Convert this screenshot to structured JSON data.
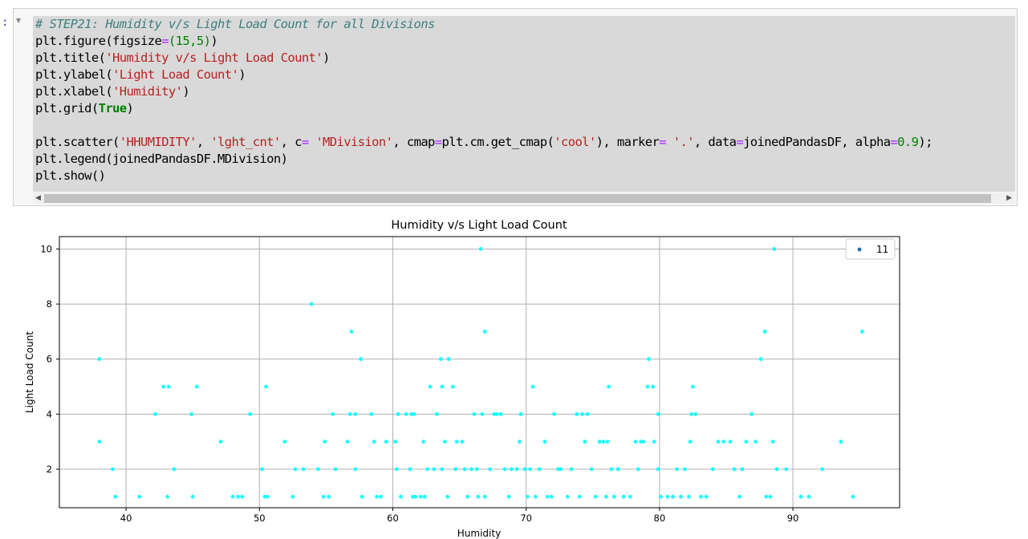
{
  "prompt": ":",
  "code": {
    "comment": "# STEP21: Humidity v/s Light Load Count for all Divisions",
    "line2_pre": "plt.figure(figsize",
    "line2_op": "=",
    "line2_num": "(15,5)",
    "line2_post": ")",
    "line3_pre": "plt.title(",
    "line3_str": "'Humidity v/s Light Load Count'",
    "line3_post": ")",
    "line4_pre": "plt.ylabel(",
    "line4_str": "'Light Load Count'",
    "line4_post": ")",
    "line5_pre": "plt.xlabel(",
    "line5_str": "'Humidity'",
    "line5_post": ")",
    "line6_pre": "plt.grid(",
    "line6_kw": "True",
    "line6_post": ")",
    "line8_a": "plt.scatter(",
    "line8_s1": "'HHUMIDITY'",
    "line8_b": ", ",
    "line8_s2": "'lght_cnt'",
    "line8_c": ", c",
    "line8_op1": "=",
    "line8_d": " ",
    "line8_s3": "'MDivision'",
    "line8_e": ", cmap",
    "line8_op2": "=",
    "line8_f": "plt.cm.get_cmap(",
    "line8_s4": "'cool'",
    "line8_g": "), marker",
    "line8_op3": "=",
    "line8_h": " ",
    "line8_s5": "'.'",
    "line8_i": ", data",
    "line8_op4": "=",
    "line8_j": "joinedPandasDF, alpha",
    "line8_op5": "=",
    "line8_num": "0.9",
    "line8_k": ");",
    "line9": "plt.legend(joinedPandasDF.MDivision)",
    "line10": "plt.show()"
  },
  "chart_data": {
    "type": "scatter",
    "title": "Humidity v/s Light Load Count",
    "xlabel": "Humidity",
    "ylabel": "Light Load Count",
    "xlim": [
      35,
      98
    ],
    "ylim": [
      0.6,
      10.45
    ],
    "xticks": [
      40,
      50,
      60,
      70,
      80,
      90
    ],
    "yticks": [
      2,
      4,
      6,
      8,
      10
    ],
    "grid": true,
    "legend": {
      "position": "top-right",
      "entries": [
        "11"
      ],
      "marker_color": "#1f77b4"
    },
    "point_color": "#00ffff",
    "points": [
      [
        38,
        6
      ],
      [
        38,
        3
      ],
      [
        39,
        2
      ],
      [
        39.2,
        1
      ],
      [
        41,
        1
      ],
      [
        42.2,
        4
      ],
      [
        42.8,
        5
      ],
      [
        43.2,
        5
      ],
      [
        43.1,
        1
      ],
      [
        43.6,
        2
      ],
      [
        44.9,
        4
      ],
      [
        45,
        1
      ],
      [
        45.3,
        5
      ],
      [
        47.1,
        3
      ],
      [
        48,
        1
      ],
      [
        48.4,
        1
      ],
      [
        48.7,
        1
      ],
      [
        49.3,
        4
      ],
      [
        50.2,
        2
      ],
      [
        50.4,
        1
      ],
      [
        50.6,
        1
      ],
      [
        50.5,
        5
      ],
      [
        51.9,
        3
      ],
      [
        52.5,
        1
      ],
      [
        52.7,
        2
      ],
      [
        53.3,
        2
      ],
      [
        53.9,
        8
      ],
      [
        54.4,
        2
      ],
      [
        54.8,
        1
      ],
      [
        54.9,
        3
      ],
      [
        55.2,
        1
      ],
      [
        55.5,
        4
      ],
      [
        55.7,
        2
      ],
      [
        56.6,
        3
      ],
      [
        56.8,
        4
      ],
      [
        56.9,
        7
      ],
      [
        57.2,
        4
      ],
      [
        57.2,
        2
      ],
      [
        57.6,
        6
      ],
      [
        57.7,
        1
      ],
      [
        58.4,
        4
      ],
      [
        58.6,
        3
      ],
      [
        58.8,
        1
      ],
      [
        59.1,
        1
      ],
      [
        59.5,
        3
      ],
      [
        60.2,
        3
      ],
      [
        60.3,
        2
      ],
      [
        60.4,
        4
      ],
      [
        60.6,
        1
      ],
      [
        61,
        4
      ],
      [
        61.3,
        2
      ],
      [
        61.4,
        4
      ],
      [
        61.5,
        1
      ],
      [
        61.6,
        4
      ],
      [
        61.7,
        1
      ],
      [
        62.1,
        1
      ],
      [
        62.3,
        3
      ],
      [
        62.4,
        1
      ],
      [
        62.6,
        2
      ],
      [
        62.8,
        5
      ],
      [
        63.1,
        2
      ],
      [
        63.3,
        4
      ],
      [
        63.6,
        6
      ],
      [
        63.7,
        5
      ],
      [
        63.7,
        2
      ],
      [
        63.9,
        3
      ],
      [
        64.1,
        1
      ],
      [
        64.2,
        6
      ],
      [
        64.5,
        5
      ],
      [
        64.7,
        2
      ],
      [
        64.8,
        3
      ],
      [
        65.2,
        3
      ],
      [
        65.4,
        2
      ],
      [
        65.6,
        1
      ],
      [
        65.9,
        2
      ],
      [
        66.1,
        4
      ],
      [
        66.3,
        2
      ],
      [
        66.4,
        1
      ],
      [
        66.6,
        10
      ],
      [
        66.7,
        4
      ],
      [
        66.9,
        7
      ],
      [
        66.9,
        1
      ],
      [
        67.3,
        2
      ],
      [
        67.6,
        4
      ],
      [
        67.8,
        4
      ],
      [
        68.1,
        4
      ],
      [
        68.4,
        2
      ],
      [
        68.7,
        1
      ],
      [
        68.9,
        2
      ],
      [
        69.3,
        2
      ],
      [
        69.6,
        4
      ],
      [
        69.5,
        3
      ],
      [
        69.9,
        2
      ],
      [
        70.1,
        1
      ],
      [
        70.3,
        2
      ],
      [
        70.5,
        5
      ],
      [
        70.7,
        1
      ],
      [
        71,
        2
      ],
      [
        71.4,
        3
      ],
      [
        71.6,
        1
      ],
      [
        71.9,
        1
      ],
      [
        72.1,
        4
      ],
      [
        72.4,
        2
      ],
      [
        72.6,
        2
      ],
      [
        73.1,
        1
      ],
      [
        73.4,
        2
      ],
      [
        73.8,
        4
      ],
      [
        74,
        1
      ],
      [
        74.2,
        4
      ],
      [
        74.4,
        3
      ],
      [
        74.6,
        4
      ],
      [
        74.9,
        2
      ],
      [
        75.2,
        1
      ],
      [
        75.5,
        3
      ],
      [
        75.8,
        3
      ],
      [
        76,
        1
      ],
      [
        76.1,
        3
      ],
      [
        76.2,
        5
      ],
      [
        76.4,
        2
      ],
      [
        76.6,
        1
      ],
      [
        76.9,
        2
      ],
      [
        77.3,
        1
      ],
      [
        77.8,
        1
      ],
      [
        78.2,
        3
      ],
      [
        78.4,
        2
      ],
      [
        78.6,
        3
      ],
      [
        78.8,
        3
      ],
      [
        79.2,
        6
      ],
      [
        79.1,
        5
      ],
      [
        79.5,
        5
      ],
      [
        79.6,
        3
      ],
      [
        79.9,
        4
      ],
      [
        79.9,
        2
      ],
      [
        80.1,
        1
      ],
      [
        80.6,
        1
      ],
      [
        81,
        1
      ],
      [
        81.3,
        2
      ],
      [
        81.6,
        1
      ],
      [
        81.9,
        2
      ],
      [
        82.3,
        3
      ],
      [
        82.2,
        1
      ],
      [
        82.4,
        4
      ],
      [
        82.5,
        5
      ],
      [
        82.7,
        4
      ],
      [
        83.1,
        1
      ],
      [
        83.5,
        1
      ],
      [
        84,
        2
      ],
      [
        84.4,
        3
      ],
      [
        84.8,
        3
      ],
      [
        85.3,
        3
      ],
      [
        85.6,
        2
      ],
      [
        86,
        1
      ],
      [
        86.2,
        2
      ],
      [
        86.5,
        3
      ],
      [
        86.9,
        4
      ],
      [
        87.2,
        3
      ],
      [
        87.6,
        6
      ],
      [
        87.9,
        7
      ],
      [
        88,
        1
      ],
      [
        88.3,
        1
      ],
      [
        88.6,
        10
      ],
      [
        88.5,
        3
      ],
      [
        88.8,
        2
      ],
      [
        89.5,
        2
      ],
      [
        90.6,
        1
      ],
      [
        91.2,
        1
      ],
      [
        92.2,
        2
      ],
      [
        93.6,
        3
      ],
      [
        94.5,
        1
      ],
      [
        95.2,
        7
      ]
    ]
  }
}
